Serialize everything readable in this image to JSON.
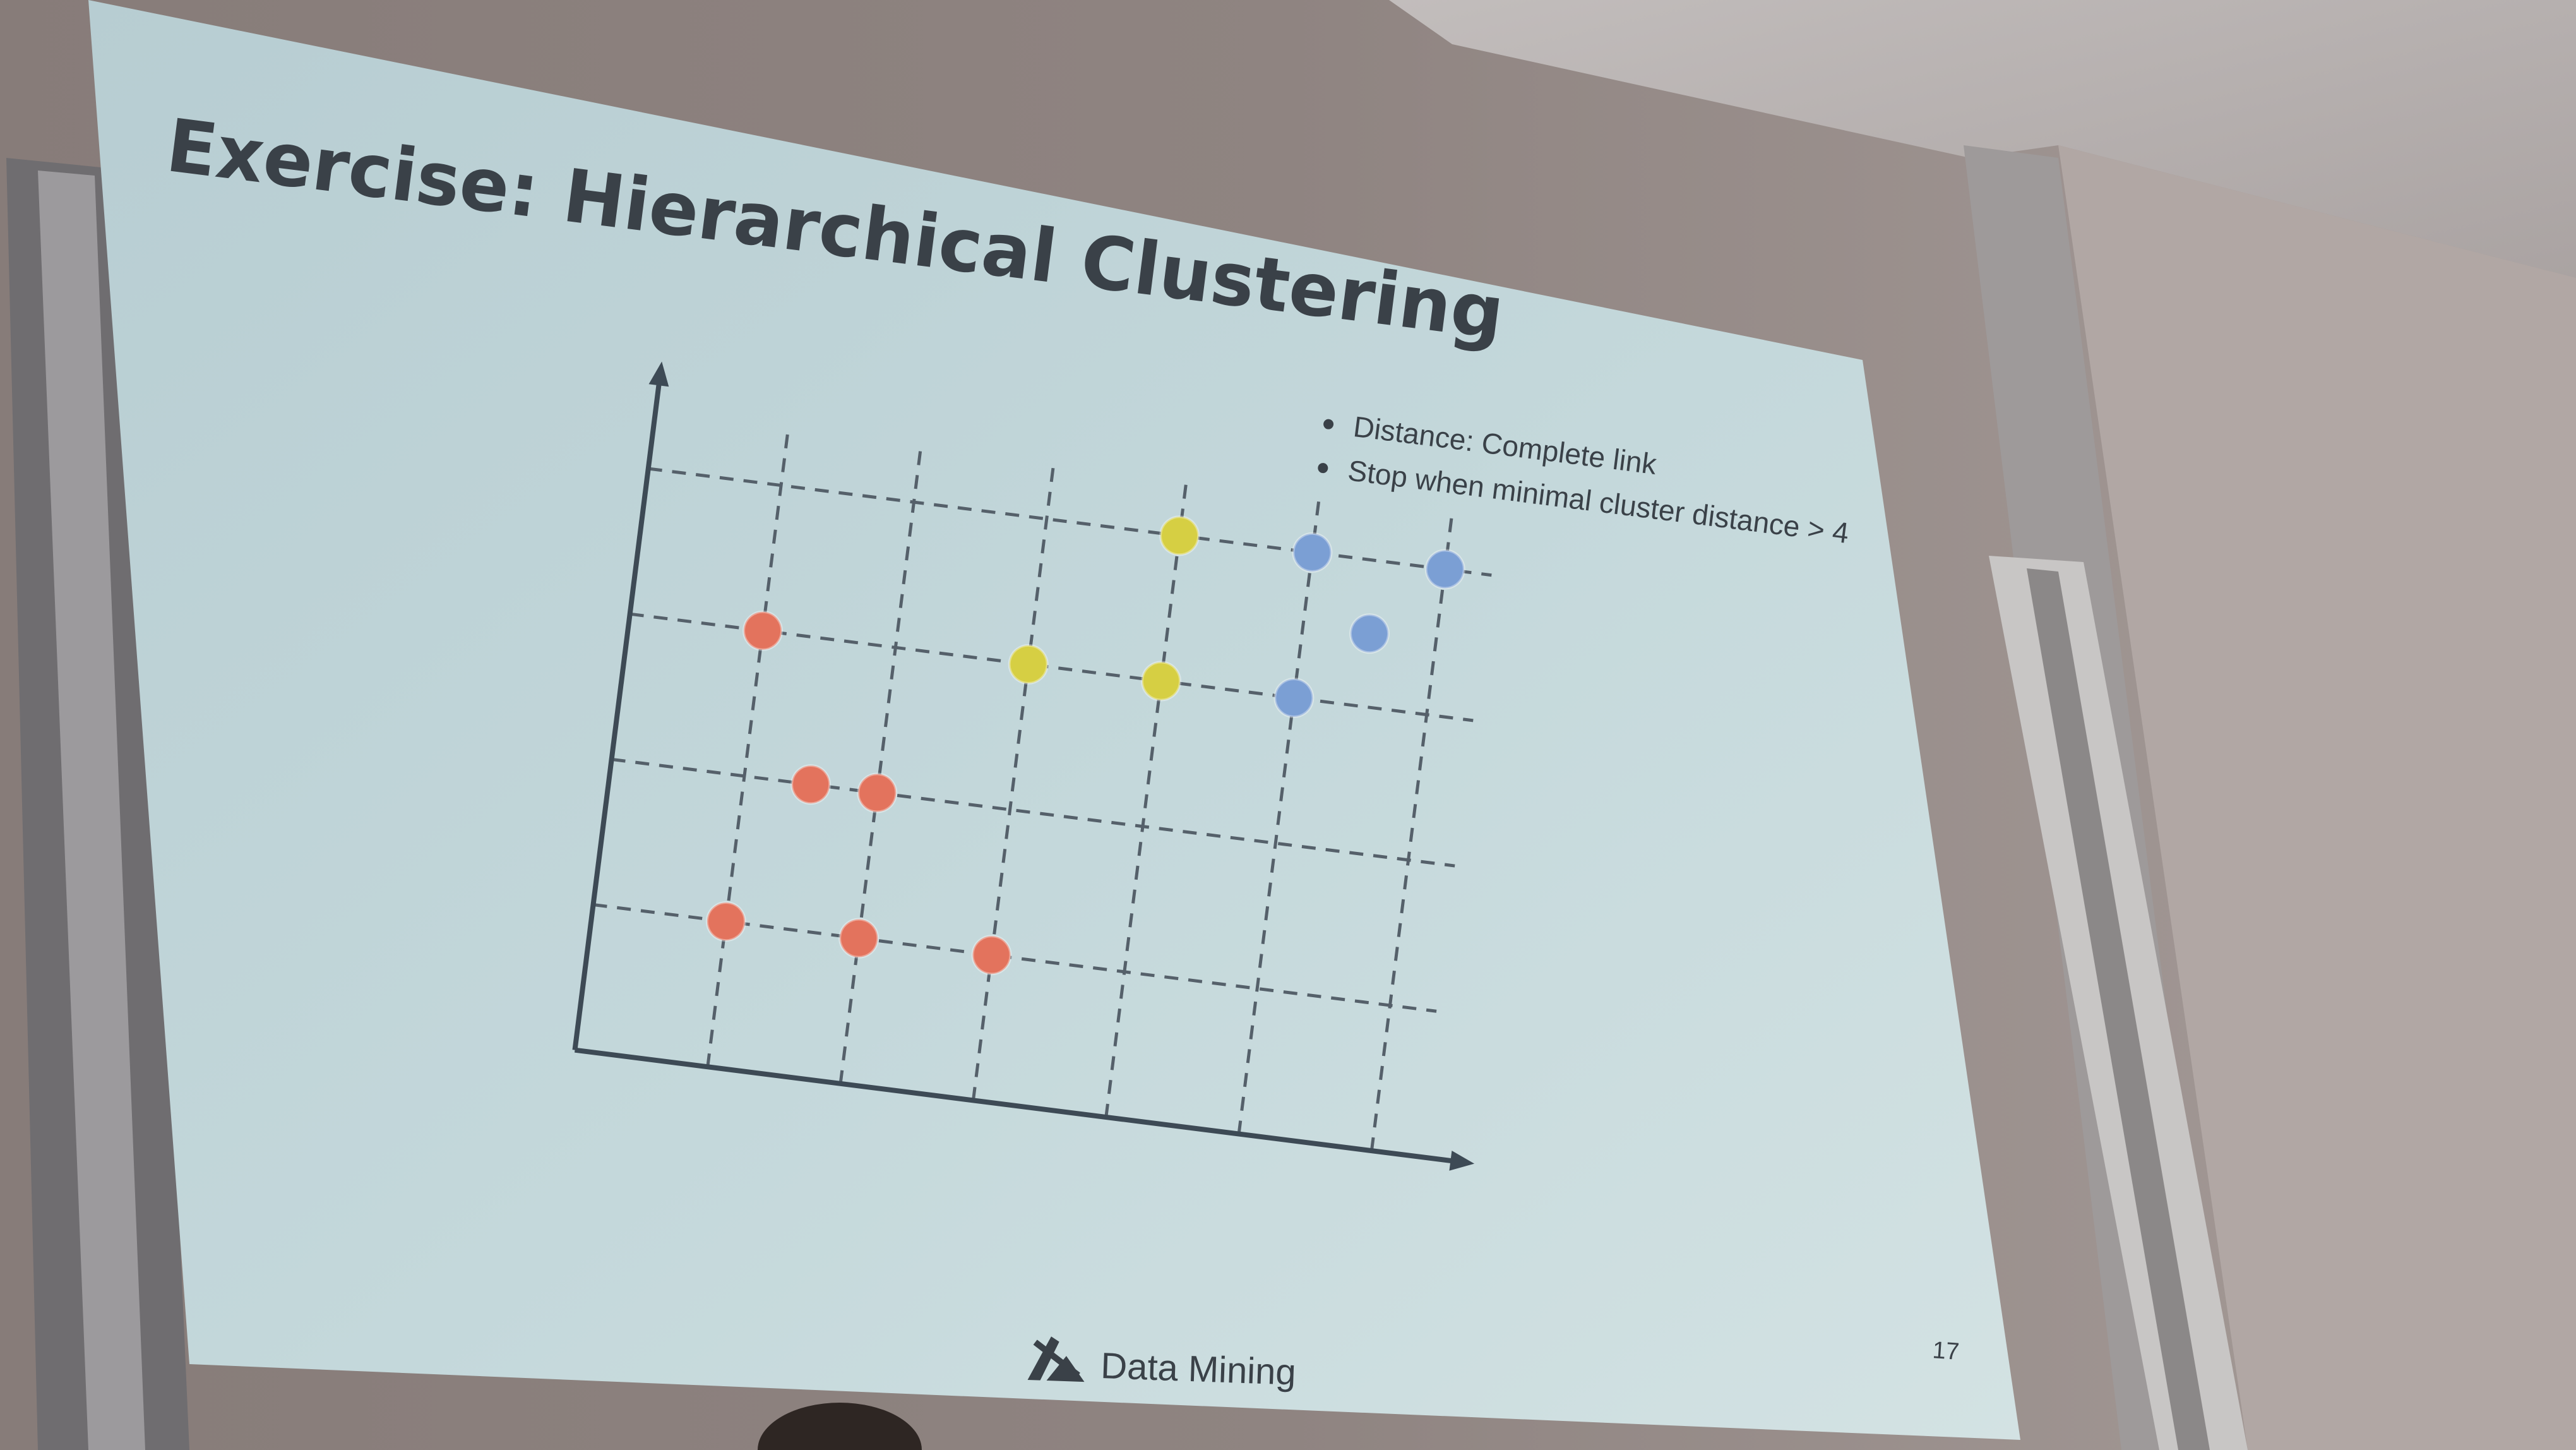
{
  "slide": {
    "title": "Exercise: Hierarchical Clustering",
    "bullets": [
      "Distance: Complete link",
      "Stop when minimal cluster distance > 4"
    ],
    "footer_label": "Data Mining",
    "page_number": "17"
  },
  "plot": {
    "grid_columns": 6,
    "grid_rows": 4,
    "points": [
      {
        "col": 1,
        "row": 3,
        "color": "#e3735d"
      },
      {
        "col": 4,
        "row": 4,
        "color": "#d6cf43"
      },
      {
        "col": 5,
        "row": 4,
        "color": "#7b9fd4"
      },
      {
        "col": 6,
        "row": 4,
        "color": "#7b9fd4"
      },
      {
        "col": 5.5,
        "row": 3.5,
        "color": "#7b9fd4"
      },
      {
        "col": 3,
        "row": 3,
        "color": "#d6cf43"
      },
      {
        "col": 4,
        "row": 3,
        "color": "#d6cf43"
      },
      {
        "col": 5,
        "row": 3,
        "color": "#7b9fd4"
      },
      {
        "col": 1.5,
        "row": 2,
        "color": "#e3735d"
      },
      {
        "col": 2,
        "row": 2,
        "color": "#e3735d"
      },
      {
        "col": 1,
        "row": 1,
        "color": "#e3735d"
      },
      {
        "col": 2,
        "row": 1,
        "color": "#e3735d"
      },
      {
        "col": 3,
        "row": 1,
        "color": "#e3735d"
      }
    ]
  },
  "colors": {
    "wall": "#8d8380",
    "screen": "#bfd3d6",
    "axis": "#3d4a55",
    "grid": "#55606a",
    "red": "#e3735d",
    "yellow": "#d6cf43",
    "blue": "#7b9fd4"
  }
}
